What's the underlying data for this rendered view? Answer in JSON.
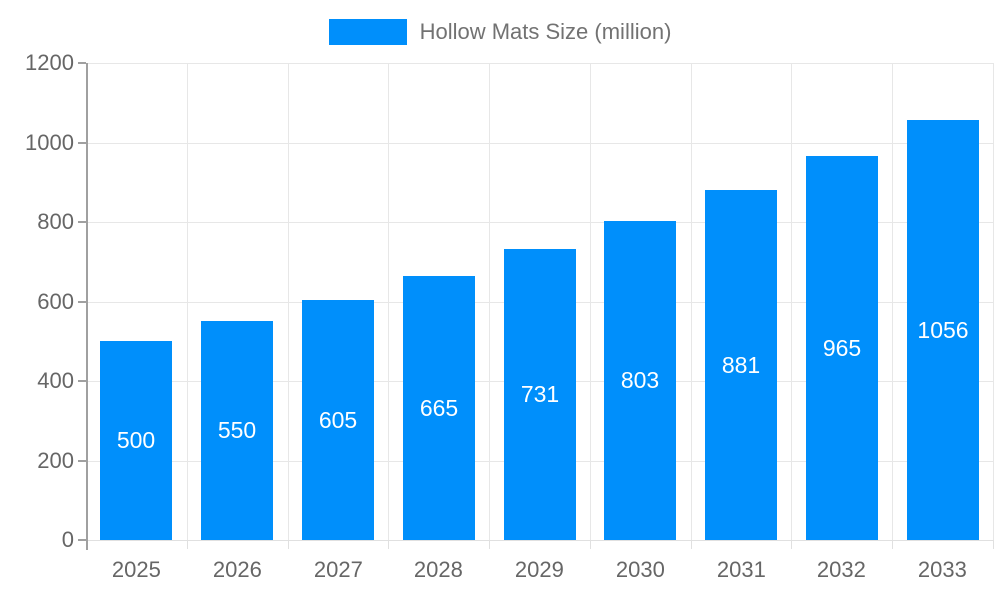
{
  "legend": {
    "label": "Hollow Mats Size (million)"
  },
  "colors": {
    "bar": "#008FFB",
    "grid": "#e7e7e7",
    "y_axis_line": "#a0a0a0",
    "x_axis_line": "#e0e0e0",
    "axis_label": "#666666",
    "legend_label": "#727272",
    "bar_label": "#ffffff"
  },
  "chart_data": {
    "type": "bar",
    "title": "",
    "categories": [
      "2025",
      "2026",
      "2027",
      "2028",
      "2029",
      "2030",
      "2031",
      "2032",
      "2033"
    ],
    "series": [
      {
        "name": "Hollow Mats Size (million)",
        "values": [
          500,
          550,
          605,
          665,
          731,
          803,
          881,
          965,
          1056
        ]
      }
    ],
    "xlabel": "",
    "ylabel": "",
    "ylim": [
      0,
      1200
    ],
    "ytick_step": 200,
    "yticks": [
      0,
      200,
      400,
      600,
      800,
      1000,
      1200
    ],
    "grid": true,
    "legend_position": "top",
    "bar_value_labels_inside": true
  }
}
